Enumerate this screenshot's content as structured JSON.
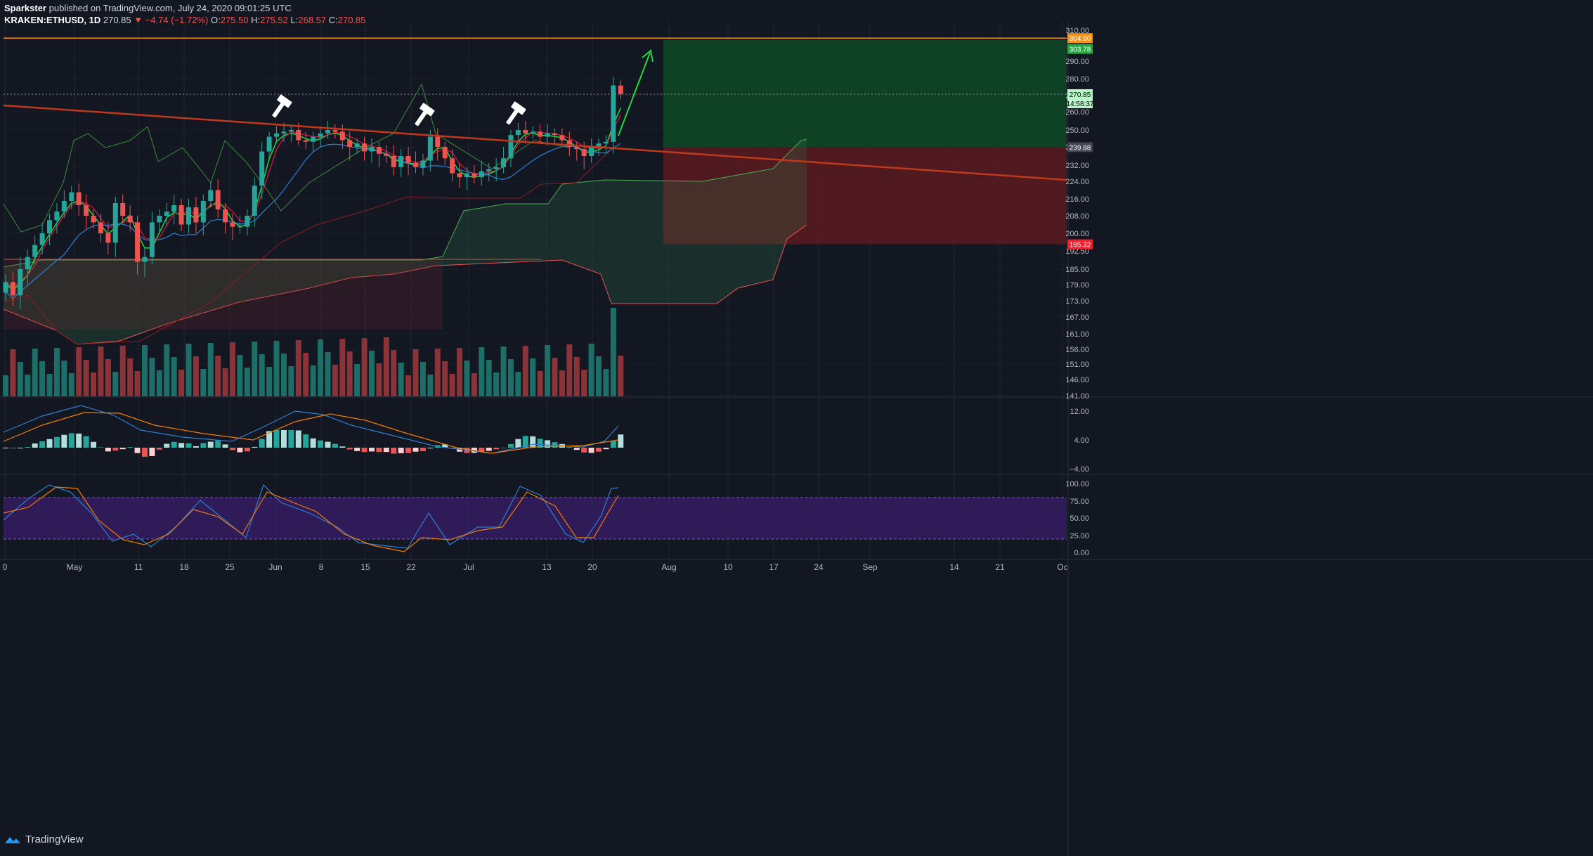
{
  "header": {
    "author": "Sparkster",
    "published": "published on TradingView.com, July 24, 2020 09:01:25 UTC",
    "symbol": "KRAKEN:ETHUSD, 1D",
    "last": "270.85",
    "change": "−4.74 (−1.72%)",
    "o_label": "O:",
    "o": "275.50",
    "h_label": "H:",
    "h": "275.52",
    "l_label": "L:",
    "l": "268.57",
    "c_label": "C:",
    "c": "270.85"
  },
  "footer": {
    "brand": "TradingView"
  },
  "colors": {
    "bg": "#131722",
    "grid": "#1f2430",
    "up": "#26a69a",
    "down": "#ef5350",
    "trend": "#c0391b",
    "resistance": "#f7931a",
    "target_zone": "#0f4a26",
    "stop_zone": "#5a1a1f",
    "arrow": "#22d93c",
    "volume_up": "#1e6e68",
    "volume_down": "#8a3338"
  },
  "chart_data": [
    {
      "type": "candlestick",
      "name": "price",
      "ylim": [
        141,
        312
      ],
      "y_ticks": [
        "310.00",
        "290.00",
        "280.00",
        "270.00",
        "260.00",
        "250.00",
        "240.00",
        "232.00",
        "224.00",
        "216.00",
        "208.00",
        "200.00",
        "192.50",
        "185.00",
        "179.00",
        "173.00",
        "167.00",
        "161.00",
        "156.00",
        "151.00",
        "146.00",
        "141.00"
      ],
      "x_ticks": [
        "0",
        "May",
        "11",
        "18",
        "25",
        "Jun",
        "8",
        "15",
        "22",
        "Jul",
        "13",
        "20",
        "Aug",
        "10",
        "17",
        "24",
        "Sep",
        "14",
        "21",
        "Oc"
      ],
      "price_labels": [
        {
          "value": "304.90",
          "color": "#f7931a"
        },
        {
          "value": "303.78",
          "color": "#26a641"
        },
        {
          "value": "270.85",
          "color": "#b9f6ca"
        },
        {
          "value": "14:58:37",
          "color": "#b9f6ca"
        },
        {
          "value": "239.88",
          "color": "#434651"
        },
        {
          "value": "195.32",
          "color": "#f21f2c"
        }
      ],
      "levels": {
        "resistance": 304.9,
        "target": 303.78,
        "last": 270.85,
        "entry": 239.88,
        "stop": 195.32
      },
      "closes": [
        180,
        175,
        185,
        190,
        195,
        200,
        206,
        210,
        215,
        219,
        213,
        208,
        205,
        200,
        196,
        214,
        208,
        205,
        188,
        190,
        205,
        208,
        210,
        213,
        204,
        212,
        205,
        215,
        220,
        211,
        205,
        203,
        203,
        208,
        222,
        238,
        246,
        248,
        249,
        250,
        244,
        243,
        246,
        248,
        250,
        249,
        244,
        240,
        242,
        238,
        240,
        237,
        236,
        231,
        236,
        233,
        231,
        234,
        246,
        240,
        235,
        228,
        226,
        228,
        226,
        229,
        230,
        231,
        235,
        247,
        250,
        248,
        249,
        246,
        248,
        247,
        244,
        240,
        239,
        236,
        240,
        242,
        243,
        276,
        270.85
      ]
    },
    {
      "type": "bar",
      "name": "volume"
    },
    {
      "type": "line",
      "name": "macd",
      "y_ticks": [
        "12.00",
        "4.00",
        "−4.00"
      ]
    },
    {
      "type": "line",
      "name": "stoch_rsi",
      "y_ticks": [
        "100.00",
        "75.00",
        "50.00",
        "25.00",
        "0.00"
      ]
    }
  ]
}
